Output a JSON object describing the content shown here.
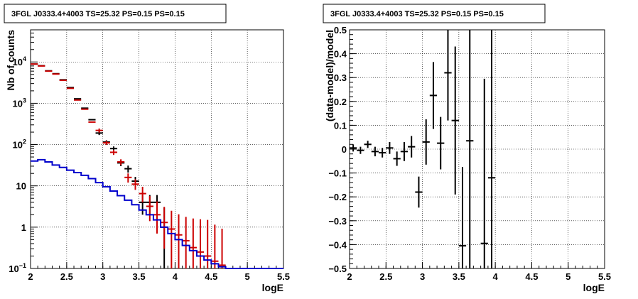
{
  "chart_data": [
    {
      "type": "scatter",
      "title": "3FGL J0333.4+4003 TS=25.32 PS=0.15 PS=0.15",
      "xlabel": "logE",
      "ylabel": "Nb of counts",
      "xlim": [
        2,
        5.5
      ],
      "ylim": [
        0.1,
        60000
      ],
      "yscale": "log",
      "grid": true,
      "x_ticks": [
        "2",
        "2.5",
        "3",
        "3.5",
        "4",
        "4.5",
        "5",
        "5.5"
      ],
      "y_ticks": [
        {
          "value": 0.1,
          "label": "10",
          "exp": "−1"
        },
        {
          "value": 1,
          "label": "1",
          "exp": ""
        },
        {
          "value": 10,
          "label": "10",
          "exp": ""
        },
        {
          "value": 100,
          "label": "10",
          "exp": "2"
        },
        {
          "value": 1000,
          "label": "10",
          "exp": "3"
        },
        {
          "value": 10000,
          "label": "10",
          "exp": "4"
        }
      ],
      "series": [
        {
          "color": "#000000",
          "x": [
            2.05,
            2.15,
            2.25,
            2.35,
            2.45,
            2.55,
            2.65,
            2.75,
            2.85,
            2.95,
            3.05,
            3.15,
            3.25,
            3.35,
            3.45,
            3.55,
            3.65,
            3.75,
            3.85
          ],
          "y": [
            8900,
            8100,
            6100,
            5200,
            3700,
            2400,
            1280,
            760,
            400,
            190,
            115,
            80,
            36,
            26,
            13,
            4,
            4,
            4,
            1
          ],
          "err_low": [
            0,
            0,
            0,
            0,
            0,
            0,
            0,
            0,
            0,
            20,
            12,
            10,
            6,
            5,
            3.5,
            2,
            2,
            2,
            1
          ],
          "err_high": [
            0,
            0,
            0,
            0,
            0,
            0,
            0,
            0,
            0,
            20,
            12,
            10,
            6,
            5,
            3.5,
            2,
            2,
            2,
            2
          ]
        },
        {
          "color": "#cc0000",
          "x": [
            2.05,
            2.15,
            2.25,
            2.35,
            2.45,
            2.55,
            2.65,
            2.75,
            2.85,
            2.95,
            3.05,
            3.15,
            3.25,
            3.35,
            3.45,
            3.55,
            3.65,
            3.75,
            3.85,
            3.95,
            4.05,
            4.15,
            4.25,
            4.35,
            4.45,
            4.55,
            4.65
          ],
          "y": [
            8900,
            8000,
            6000,
            5100,
            3600,
            2300,
            1200,
            720,
            350,
            220,
            110,
            65,
            38,
            16,
            11,
            6.5,
            3.2,
            2.0,
            1.3,
            0.9,
            0.65,
            0.47,
            0.32,
            0.25,
            0.2,
            0.15,
            0.12
          ],
          "err_low": [
            0,
            0,
            0,
            0,
            0,
            0,
            0,
            0,
            0,
            25,
            12,
            9,
            6,
            4,
            3,
            2.5,
            1.8,
            1.3,
            1.0,
            0.85,
            0.6,
            0.45,
            0.3,
            0.24,
            0.19,
            0.14,
            0.11
          ],
          "err_high": [
            0,
            0,
            0,
            0,
            0,
            0,
            0,
            0,
            0,
            25,
            12,
            9,
            6,
            4,
            3.5,
            3,
            2.5,
            2.2,
            1.8,
            1.6,
            1.4,
            1.3,
            1.3,
            1.3,
            1.3,
            1.0,
            0.8
          ]
        },
        {
          "color": "#0000cc",
          "step": true,
          "edges": [
            2.0,
            2.1,
            2.2,
            2.3,
            2.4,
            2.5,
            2.6,
            2.7,
            2.8,
            2.9,
            3.0,
            3.1,
            3.2,
            3.3,
            3.4,
            3.5,
            3.6,
            3.7,
            3.8,
            3.9,
            4.0,
            4.1,
            4.2,
            4.3,
            4.4,
            4.5,
            4.6,
            4.7,
            4.8,
            4.9,
            5.0,
            5.1,
            5.2,
            5.3,
            5.4,
            5.5
          ],
          "values": [
            40,
            43,
            38,
            32,
            28,
            24,
            21,
            18,
            15,
            12,
            9.5,
            7.5,
            5.8,
            4.5,
            3.5,
            2.6,
            2.0,
            1.5,
            1.0,
            0.7,
            0.5,
            0.36,
            0.27,
            0.2,
            0.16,
            0.13,
            0.11,
            0.1,
            0.1,
            0.1,
            0.1,
            0.1,
            0.1,
            0.1,
            0.1
          ]
        }
      ]
    },
    {
      "type": "scatter",
      "title": "3FGL J0333.4+4003 TS=25.32 PS=0.15 PS=0.15",
      "xlabel": "logE",
      "ylabel": "(data-model)/model",
      "xlim": [
        2,
        5.5
      ],
      "ylim": [
        -0.5,
        0.5
      ],
      "grid": true,
      "x_ticks": [
        "2",
        "2.5",
        "3",
        "3.5",
        "4",
        "4.5",
        "5",
        "5.5"
      ],
      "y_ticks": [
        "−0.5",
        "−0.4",
        "−0.3",
        "−0.2",
        "−0.1",
        "0",
        "0.1",
        "0.2",
        "0.3",
        "0.4",
        "0.5"
      ],
      "series": [
        {
          "color": "#000000",
          "x": [
            2.05,
            2.15,
            2.25,
            2.35,
            2.45,
            2.55,
            2.65,
            2.75,
            2.85,
            2.95,
            3.05,
            3.15,
            3.25,
            3.35,
            3.45,
            3.55,
            3.65,
            3.85,
            3.95
          ],
          "y": [
            0.005,
            -0.005,
            0.02,
            -0.01,
            -0.015,
            0.005,
            -0.04,
            -0.01,
            0.01,
            -0.18,
            0.03,
            0.225,
            0.025,
            0.32,
            0.12,
            -0.405,
            0.035,
            -0.395,
            -0.12
          ],
          "err_low": [
            0.015,
            0.015,
            0.015,
            0.02,
            0.02,
            0.025,
            0.03,
            0.04,
            0.045,
            0.065,
            0.095,
            0.14,
            0.11,
            0.2,
            0.31,
            0.2,
            0.54,
            0.2,
            0.4
          ],
          "err_high": [
            0.015,
            0.015,
            0.015,
            0.02,
            0.02,
            0.025,
            0.03,
            0.04,
            0.045,
            0.065,
            0.095,
            0.14,
            0.11,
            0.2,
            0.31,
            0.33,
            0.54,
            0.69,
            0.65
          ]
        }
      ]
    }
  ]
}
